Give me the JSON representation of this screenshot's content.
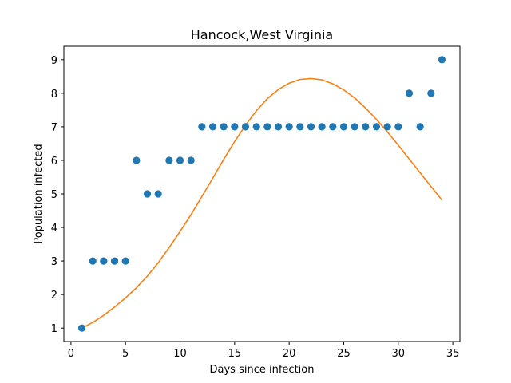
{
  "chart_data": {
    "type": "scatter",
    "title": "Hancock,West Virginia",
    "xlabel": "Days since infection",
    "ylabel": "Population infected",
    "xlim": [
      -0.65,
      35.65
    ],
    "ylim": [
      0.6,
      9.4
    ],
    "xticks": [
      0,
      5,
      10,
      15,
      20,
      25,
      30,
      35
    ],
    "yticks": [
      1,
      2,
      3,
      4,
      5,
      6,
      7,
      8,
      9
    ],
    "grid": false,
    "series": [
      {
        "kind": "scatter",
        "color": "#1f77b4",
        "x": [
          1,
          2,
          3,
          4,
          5,
          6,
          7,
          8,
          9,
          10,
          11,
          12,
          13,
          14,
          15,
          16,
          17,
          18,
          19,
          20,
          21,
          22,
          23,
          24,
          25,
          26,
          27,
          28,
          29,
          30,
          31,
          32,
          33,
          34
        ],
        "y": [
          1,
          3,
          3,
          3,
          3,
          6,
          5,
          5,
          6,
          6,
          6,
          7,
          7,
          7,
          7,
          7,
          7,
          7,
          7,
          7,
          7,
          7,
          7,
          7,
          7,
          7,
          7,
          7,
          7,
          7,
          8,
          7,
          8,
          9
        ]
      },
      {
        "kind": "line",
        "color": "#ff7f0e",
        "x": [
          1,
          2,
          3,
          4,
          5,
          6,
          7,
          8,
          9,
          10,
          11,
          12,
          13,
          14,
          15,
          16,
          17,
          18,
          19,
          20,
          21,
          22,
          23,
          24,
          25,
          26,
          27,
          28,
          29,
          30,
          31,
          32,
          33,
          34
        ],
        "y": [
          1.0,
          1.17,
          1.38,
          1.63,
          1.9,
          2.2,
          2.55,
          2.95,
          3.4,
          3.88,
          4.38,
          4.92,
          5.47,
          6.03,
          6.56,
          7.05,
          7.48,
          7.84,
          8.11,
          8.3,
          8.41,
          8.44,
          8.4,
          8.28,
          8.1,
          7.86,
          7.56,
          7.22,
          6.85,
          6.45,
          6.04,
          5.63,
          5.22,
          4.82
        ]
      }
    ]
  }
}
